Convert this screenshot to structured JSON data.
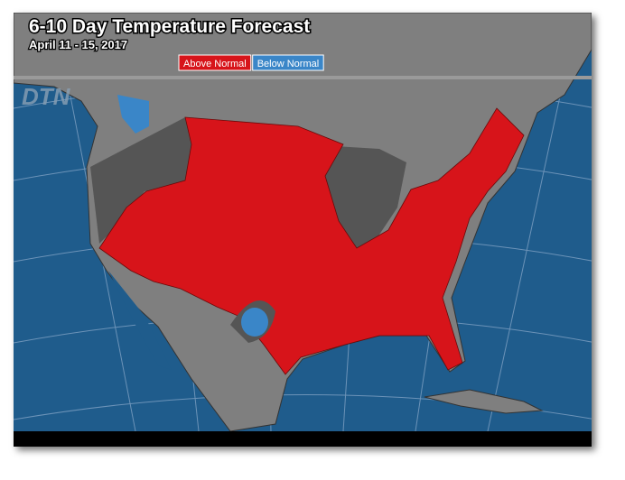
{
  "map": {
    "title": "6-10 Day Temperature Forecast",
    "subtitle": "April 11 - 15, 2017",
    "legend": [
      {
        "label": "Above Normal",
        "color": "#d7141a"
      },
      {
        "label": "Below Normal",
        "color": "#3a86c8"
      }
    ],
    "logo": "DTN"
  }
}
